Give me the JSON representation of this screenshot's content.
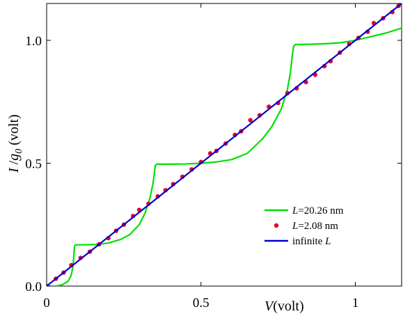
{
  "chart_data": {
    "type": "line",
    "xlabel": {
      "var": "V",
      "unit": "(volt)"
    },
    "ylabel": {
      "var1": "I",
      "sep": " /",
      "var2": "g",
      "sub": "0",
      "unit": " (volt)"
    },
    "xlim": [
      0,
      1.15
    ],
    "ylim": [
      0,
      1.15
    ],
    "x_ticks": [
      {
        "value": 0,
        "label": "0"
      },
      {
        "value": 0.5,
        "label": "0.5"
      },
      {
        "value": 1,
        "label": "1"
      }
    ],
    "y_ticks": [
      {
        "value": 0,
        "label": "0.0"
      },
      {
        "value": 0.5,
        "label": "0.5"
      },
      {
        "value": 1,
        "label": "1.0"
      }
    ],
    "grid": false,
    "legend_position": "lower-right",
    "series": [
      {
        "name": "L=20.26 nm",
        "legend_var": "L",
        "legend_rest": "=20.26 nm",
        "style": "line",
        "color": "#00e000",
        "x": [
          0,
          0.03,
          0.05,
          0.07,
          0.08,
          0.085,
          0.088,
          0.09,
          0.092,
          0.1,
          0.13,
          0.16,
          0.2,
          0.24,
          0.27,
          0.3,
          0.32,
          0.335,
          0.345,
          0.35,
          0.352,
          0.355,
          0.36,
          0.4,
          0.45,
          0.5,
          0.55,
          0.6,
          0.65,
          0.7,
          0.73,
          0.76,
          0.78,
          0.79,
          0.795,
          0.8,
          0.805,
          0.85,
          0.9,
          0.95,
          1.0,
          1.05,
          1.1,
          1.15
        ],
        "y": [
          0,
          0.0,
          0.005,
          0.02,
          0.045,
          0.08,
          0.12,
          0.16,
          0.167,
          0.168,
          0.168,
          0.169,
          0.175,
          0.19,
          0.21,
          0.25,
          0.3,
          0.36,
          0.42,
          0.47,
          0.49,
          0.495,
          0.496,
          0.496,
          0.497,
          0.5,
          0.505,
          0.515,
          0.54,
          0.6,
          0.65,
          0.72,
          0.8,
          0.87,
          0.93,
          0.975,
          0.983,
          0.984,
          0.986,
          0.99,
          1.0,
          1.015,
          1.03,
          1.05
        ]
      },
      {
        "name": "L=2.08 nm",
        "legend_var": "L",
        "legend_rest": "=2.08 nm",
        "style": "points",
        "color": "#e8002a",
        "x": [
          0,
          0.03,
          0.055,
          0.08,
          0.11,
          0.14,
          0.17,
          0.2,
          0.225,
          0.25,
          0.28,
          0.3,
          0.33,
          0.36,
          0.385,
          0.41,
          0.44,
          0.47,
          0.5,
          0.53,
          0.55,
          0.58,
          0.61,
          0.63,
          0.66,
          0.69,
          0.72,
          0.75,
          0.78,
          0.81,
          0.84,
          0.87,
          0.9,
          0.92,
          0.95,
          0.98,
          1.01,
          1.04,
          1.06,
          1.09,
          1.12,
          1.14
        ],
        "y": [
          0,
          0.03,
          0.055,
          0.085,
          0.115,
          0.14,
          0.17,
          0.195,
          0.225,
          0.25,
          0.285,
          0.31,
          0.335,
          0.365,
          0.39,
          0.415,
          0.445,
          0.475,
          0.505,
          0.54,
          0.55,
          0.58,
          0.615,
          0.63,
          0.675,
          0.695,
          0.73,
          0.745,
          0.785,
          0.805,
          0.83,
          0.86,
          0.895,
          0.915,
          0.95,
          0.985,
          1.01,
          1.035,
          1.07,
          1.09,
          1.115,
          1.14
        ]
      },
      {
        "name": "infinite L",
        "legend_plain": "infinite ",
        "legend_var": "L",
        "style": "line",
        "color": "#0000cc",
        "x": [
          0,
          1.15
        ],
        "y": [
          0,
          1.15
        ]
      }
    ]
  }
}
